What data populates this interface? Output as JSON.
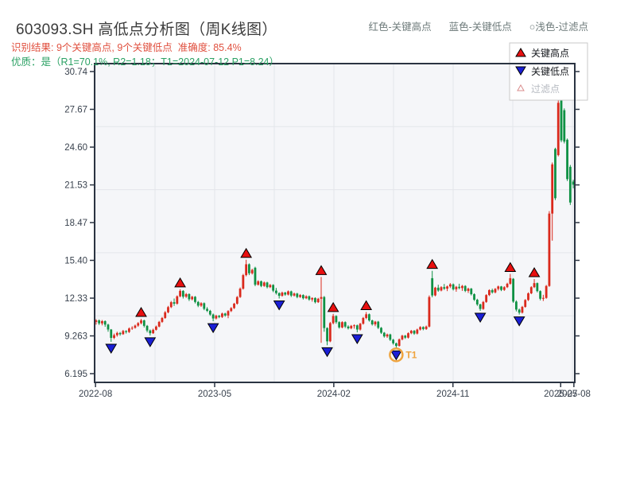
{
  "header": {
    "title": "603093.SH 高低点分析图（周K线图）",
    "result_line": "识别结果: 9个关键高点, 9个关键低点  准确度: 85.4%",
    "quality_line": "优质：是（R1=70.1%, R2=1.18；T1=2024-07-12 P1=8.24）",
    "color_key": {
      "high": "红色-关键高点",
      "low": "蓝色-关键低点",
      "filter": "○浅色-过滤点"
    }
  },
  "legend": {
    "high": "关键高点",
    "low": "关键低点",
    "filter": "过滤点"
  },
  "colors": {
    "up_candle": "#da291c",
    "down_candle": "#0f9144",
    "high_marker": "#e81010",
    "low_marker": "#1a1fd6",
    "marker_edge": "#000000",
    "t1": "#efa43f",
    "result_text": "#e0503f",
    "quality_text": "#2ba164",
    "key_text": "#6d7a7a",
    "plot_bg": "#f5f6f9",
    "grid": "#e4e5ea",
    "spine": "#2b3442",
    "tick_label": "#39424e",
    "legend_muted": "#b6bac1",
    "filter_edge": "#d98c8c"
  },
  "chart_data": {
    "type": "candlestick",
    "symbol": "603093.SH",
    "period": "weekly",
    "grid": true,
    "legend_position": "top-right",
    "ylim": [
      6.195,
      30.74
    ],
    "yticks": [
      {
        "v": 30.74,
        "label": "30.74"
      },
      {
        "v": 27.67,
        "label": "27.67"
      },
      {
        "v": 24.6,
        "label": "24.60"
      },
      {
        "v": 21.53,
        "label": "21.53"
      },
      {
        "v": 18.47,
        "label": "18.47"
      },
      {
        "v": 15.4,
        "label": "15.40"
      },
      {
        "v": 12.33,
        "label": "12.33"
      },
      {
        "v": 9.263,
        "label": "9.263"
      },
      {
        "v": 6.195,
        "label": "6.195"
      }
    ],
    "xticks": [
      {
        "pos": -0.2,
        "label": "2022-08"
      },
      {
        "pos": 39.5,
        "label": "2023-05"
      },
      {
        "pos": 79.2,
        "label": "2024-02"
      },
      {
        "pos": 118.9,
        "label": "2024-11"
      },
      {
        "pos": 154.8,
        "label": "2025-07"
      },
      {
        "pos": 159.2,
        "label": "2025-08"
      }
    ],
    "candles": [
      [
        10.4,
        10.62,
        10.18,
        10.52
      ],
      [
        10.52,
        10.6,
        10.15,
        10.28
      ],
      [
        10.28,
        10.55,
        10.12,
        10.46
      ],
      [
        10.46,
        10.52,
        10.0,
        10.18
      ],
      [
        10.18,
        10.25,
        9.6,
        9.78
      ],
      [
        9.78,
        9.82,
        8.78,
        9.1
      ],
      [
        9.1,
        9.45,
        9.0,
        9.32
      ],
      [
        9.32,
        9.6,
        9.2,
        9.5
      ],
      [
        9.5,
        9.58,
        9.28,
        9.4
      ],
      [
        9.4,
        9.75,
        9.35,
        9.66
      ],
      [
        9.66,
        9.72,
        9.45,
        9.58
      ],
      [
        9.58,
        9.95,
        9.5,
        9.86
      ],
      [
        9.86,
        10.05,
        9.75,
        9.92
      ],
      [
        9.92,
        10.18,
        9.85,
        10.1
      ],
      [
        10.1,
        10.38,
        10.0,
        10.3
      ],
      [
        10.3,
        10.65,
        10.2,
        10.52
      ],
      [
        10.52,
        10.58,
        9.95,
        10.08
      ],
      [
        10.08,
        10.15,
        9.55,
        9.7
      ],
      [
        9.7,
        9.78,
        9.3,
        9.48
      ],
      [
        9.48,
        9.85,
        9.42,
        9.76
      ],
      [
        9.76,
        10.1,
        9.7,
        10.02
      ],
      [
        10.02,
        10.48,
        9.96,
        10.4
      ],
      [
        10.4,
        10.8,
        10.32,
        10.72
      ],
      [
        10.72,
        11.28,
        10.65,
        11.18
      ],
      [
        11.18,
        11.7,
        11.1,
        11.6
      ],
      [
        11.6,
        12.1,
        11.52,
        12.0
      ],
      [
        12.0,
        12.3,
        11.7,
        11.88
      ],
      [
        11.88,
        12.55,
        11.8,
        12.48
      ],
      [
        12.48,
        13.05,
        12.4,
        12.92
      ],
      [
        12.92,
        12.98,
        12.3,
        12.45
      ],
      [
        12.45,
        12.75,
        12.35,
        12.66
      ],
      [
        12.66,
        12.72,
        12.1,
        12.24
      ],
      [
        12.24,
        12.52,
        12.15,
        12.44
      ],
      [
        12.44,
        12.5,
        11.9,
        12.02
      ],
      [
        12.02,
        12.1,
        11.6,
        11.72
      ],
      [
        11.72,
        12.0,
        11.62,
        11.92
      ],
      [
        11.92,
        11.98,
        11.35,
        11.46
      ],
      [
        11.46,
        11.6,
        11.2,
        11.3
      ],
      [
        11.3,
        11.38,
        10.9,
        11.0
      ],
      [
        11.0,
        11.08,
        10.45,
        10.68
      ],
      [
        10.68,
        10.98,
        10.6,
        10.9
      ],
      [
        10.9,
        10.96,
        10.7,
        10.8
      ],
      [
        10.8,
        11.15,
        10.72,
        11.08
      ],
      [
        11.08,
        11.14,
        10.82,
        10.92
      ],
      [
        10.92,
        11.35,
        10.7,
        11.28
      ],
      [
        11.28,
        11.6,
        11.2,
        11.52
      ],
      [
        11.52,
        11.95,
        11.45,
        11.88
      ],
      [
        11.88,
        12.5,
        11.8,
        12.42
      ],
      [
        12.42,
        13.2,
        12.35,
        13.1
      ],
      [
        13.1,
        14.3,
        13.02,
        14.2
      ],
      [
        14.2,
        15.45,
        14.1,
        15.08
      ],
      [
        15.08,
        15.15,
        14.2,
        14.35
      ],
      [
        14.35,
        14.72,
        14.25,
        14.62
      ],
      [
        14.8,
        14.88,
        13.3,
        13.42
      ],
      [
        13.42,
        13.78,
        13.35,
        13.7
      ],
      [
        13.7,
        13.76,
        13.22,
        13.32
      ],
      [
        13.32,
        13.68,
        13.25,
        13.6
      ],
      [
        13.6,
        13.66,
        13.12,
        13.22
      ],
      [
        13.22,
        13.48,
        13.15,
        13.4
      ],
      [
        13.4,
        13.46,
        12.82,
        12.94
      ],
      [
        12.94,
        13.16,
        12.62,
        12.74
      ],
      [
        12.74,
        12.8,
        12.3,
        12.52
      ],
      [
        12.52,
        12.86,
        12.45,
        12.78
      ],
      [
        12.78,
        12.84,
        12.52,
        12.62
      ],
      [
        12.62,
        12.95,
        12.55,
        12.88
      ],
      [
        12.88,
        12.94,
        12.42,
        12.54
      ],
      [
        12.54,
        12.78,
        12.46,
        12.7
      ],
      [
        12.7,
        12.76,
        12.32,
        12.42
      ],
      [
        12.42,
        12.66,
        12.35,
        12.58
      ],
      [
        12.58,
        12.64,
        12.22,
        12.32
      ],
      [
        12.32,
        12.56,
        12.25,
        12.48
      ],
      [
        12.48,
        12.54,
        12.12,
        12.22
      ],
      [
        12.22,
        12.4,
        12.05,
        12.34
      ],
      [
        12.34,
        12.4,
        11.9,
        12.0
      ],
      [
        12.0,
        12.35,
        11.94,
        12.28
      ],
      [
        12.28,
        14.05,
        8.7,
        12.42
      ],
      [
        12.42,
        12.5,
        9.6,
        9.9
      ],
      [
        9.9,
        9.96,
        8.5,
        8.82
      ],
      [
        8.82,
        10.4,
        8.75,
        10.3
      ],
      [
        10.3,
        11.05,
        10.2,
        10.88
      ],
      [
        10.88,
        10.94,
        10.25,
        10.38
      ],
      [
        10.38,
        10.45,
        9.85,
        9.95
      ],
      [
        9.95,
        10.45,
        9.88,
        10.38
      ],
      [
        10.38,
        10.44,
        9.9,
        10.02
      ],
      [
        10.02,
        10.12,
        9.78,
        9.88
      ],
      [
        9.88,
        10.15,
        9.8,
        10.08
      ],
      [
        10.08,
        10.2,
        9.85,
        10.12
      ],
      [
        10.12,
        10.18,
        9.55,
        9.78
      ],
      [
        9.78,
        10.32,
        9.7,
        10.25
      ],
      [
        10.25,
        10.8,
        10.18,
        10.72
      ],
      [
        10.72,
        11.2,
        10.62,
        11.02
      ],
      [
        11.02,
        11.08,
        10.42,
        10.52
      ],
      [
        10.52,
        10.58,
        10.1,
        10.2
      ],
      [
        10.2,
        10.48,
        10.05,
        10.42
      ],
      [
        10.42,
        10.48,
        9.82,
        9.92
      ],
      [
        9.92,
        9.98,
        9.42,
        9.52
      ],
      [
        9.52,
        9.58,
        9.12,
        9.22
      ],
      [
        9.22,
        9.45,
        9.1,
        9.38
      ],
      [
        9.38,
        9.44,
        8.85,
        8.95
      ],
      [
        8.95,
        9.02,
        8.55,
        8.66
      ],
      [
        8.66,
        8.72,
        8.24,
        8.45
      ],
      [
        8.45,
        9.05,
        8.4,
        8.98
      ],
      [
        8.98,
        9.35,
        8.9,
        9.28
      ],
      [
        9.28,
        9.34,
        9.02,
        9.12
      ],
      [
        9.12,
        9.55,
        9.05,
        9.48
      ],
      [
        9.48,
        9.75,
        9.4,
        9.68
      ],
      [
        9.68,
        9.74,
        9.35,
        9.45
      ],
      [
        9.45,
        9.85,
        9.38,
        9.78
      ],
      [
        9.78,
        10.05,
        9.7,
        9.98
      ],
      [
        9.98,
        10.04,
        9.72,
        9.82
      ],
      [
        9.82,
        10.1,
        9.75,
        10.02
      ],
      [
        10.02,
        12.55,
        9.95,
        12.42
      ],
      [
        13.95,
        14.55,
        12.4,
        12.55
      ],
      [
        12.55,
        13.25,
        12.48,
        13.18
      ],
      [
        13.18,
        13.42,
        12.85,
        12.95
      ],
      [
        12.95,
        13.3,
        12.88,
        13.22
      ],
      [
        13.22,
        13.48,
        13.0,
        13.1
      ],
      [
        13.1,
        13.35,
        12.9,
        13.28
      ],
      [
        13.28,
        13.55,
        13.15,
        13.45
      ],
      [
        13.45,
        13.52,
        12.95,
        13.05
      ],
      [
        13.05,
        13.32,
        12.85,
        13.25
      ],
      [
        13.25,
        13.5,
        13.05,
        13.15
      ],
      [
        13.15,
        13.4,
        12.92,
        13.32
      ],
      [
        13.32,
        13.38,
        12.82,
        12.92
      ],
      [
        12.92,
        13.18,
        12.75,
        13.1
      ],
      [
        13.1,
        13.16,
        12.55,
        12.65
      ],
      [
        12.65,
        12.72,
        12.1,
        12.2
      ],
      [
        12.2,
        12.28,
        11.7,
        11.82
      ],
      [
        11.82,
        11.88,
        11.3,
        11.45
      ],
      [
        11.45,
        12.1,
        11.38,
        12.02
      ],
      [
        12.02,
        12.65,
        11.95,
        12.58
      ],
      [
        12.58,
        13.05,
        12.5,
        12.98
      ],
      [
        12.98,
        13.1,
        12.7,
        12.8
      ],
      [
        12.8,
        13.15,
        12.72,
        13.08
      ],
      [
        13.08,
        13.35,
        12.95,
        13.28
      ],
      [
        13.28,
        13.32,
        12.9,
        13.0
      ],
      [
        13.0,
        13.3,
        12.92,
        13.22
      ],
      [
        13.22,
        13.58,
        13.15,
        13.5
      ],
      [
        13.5,
        14.3,
        13.42,
        13.95
      ],
      [
        13.9,
        13.96,
        11.95,
        12.05
      ],
      [
        12.05,
        12.15,
        11.25,
        11.4
      ],
      [
        11.4,
        11.48,
        11.0,
        11.15
      ],
      [
        11.15,
        11.7,
        11.08,
        11.62
      ],
      [
        11.62,
        12.25,
        11.55,
        12.18
      ],
      [
        12.18,
        12.8,
        12.1,
        12.72
      ],
      [
        12.72,
        13.3,
        12.65,
        13.22
      ],
      [
        13.22,
        13.88,
        13.15,
        13.55
      ],
      [
        13.55,
        13.6,
        12.8,
        12.9
      ],
      [
        12.9,
        12.96,
        12.15,
        12.28
      ],
      [
        12.28,
        12.6,
        12.1,
        12.35
      ],
      [
        12.35,
        13.4,
        12.28,
        13.32
      ],
      [
        13.32,
        19.4,
        13.25,
        19.2
      ],
      [
        19.2,
        23.35,
        17.0,
        23.2
      ],
      [
        24.45,
        24.55,
        20.3,
        20.45
      ],
      [
        23.95,
        28.75,
        23.85,
        28.2
      ],
      [
        28.9,
        29.0,
        25.0,
        25.15
      ],
      [
        27.6,
        27.75,
        24.9,
        25.05
      ],
      [
        25.2,
        25.3,
        21.85,
        22.0
      ],
      [
        23.0,
        23.15,
        19.9,
        20.1
      ],
      [
        21.8,
        21.95,
        21.25,
        21.55
      ]
    ],
    "key_highs": [
      {
        "i": 15,
        "price": 10.65
      },
      {
        "i": 28,
        "price": 13.05
      },
      {
        "i": 50,
        "price": 15.45
      },
      {
        "i": 75,
        "price": 14.05
      },
      {
        "i": 79,
        "price": 11.05
      },
      {
        "i": 90,
        "price": 11.2
      },
      {
        "i": 112,
        "price": 14.55
      },
      {
        "i": 138,
        "price": 14.3
      },
      {
        "i": 146,
        "price": 13.88
      }
    ],
    "key_lows": [
      {
        "i": 5,
        "price": 8.78
      },
      {
        "i": 18,
        "price": 9.3
      },
      {
        "i": 39,
        "price": 10.45
      },
      {
        "i": 61,
        "price": 12.3
      },
      {
        "i": 77,
        "price": 8.5
      },
      {
        "i": 87,
        "price": 9.55
      },
      {
        "i": 100,
        "price": 8.24
      },
      {
        "i": 128,
        "price": 11.3
      },
      {
        "i": 141,
        "price": 11.0
      }
    ],
    "t1_marker": {
      "i": 100,
      "price": 8.24,
      "label": "T1",
      "date": "2024-07-12"
    }
  }
}
